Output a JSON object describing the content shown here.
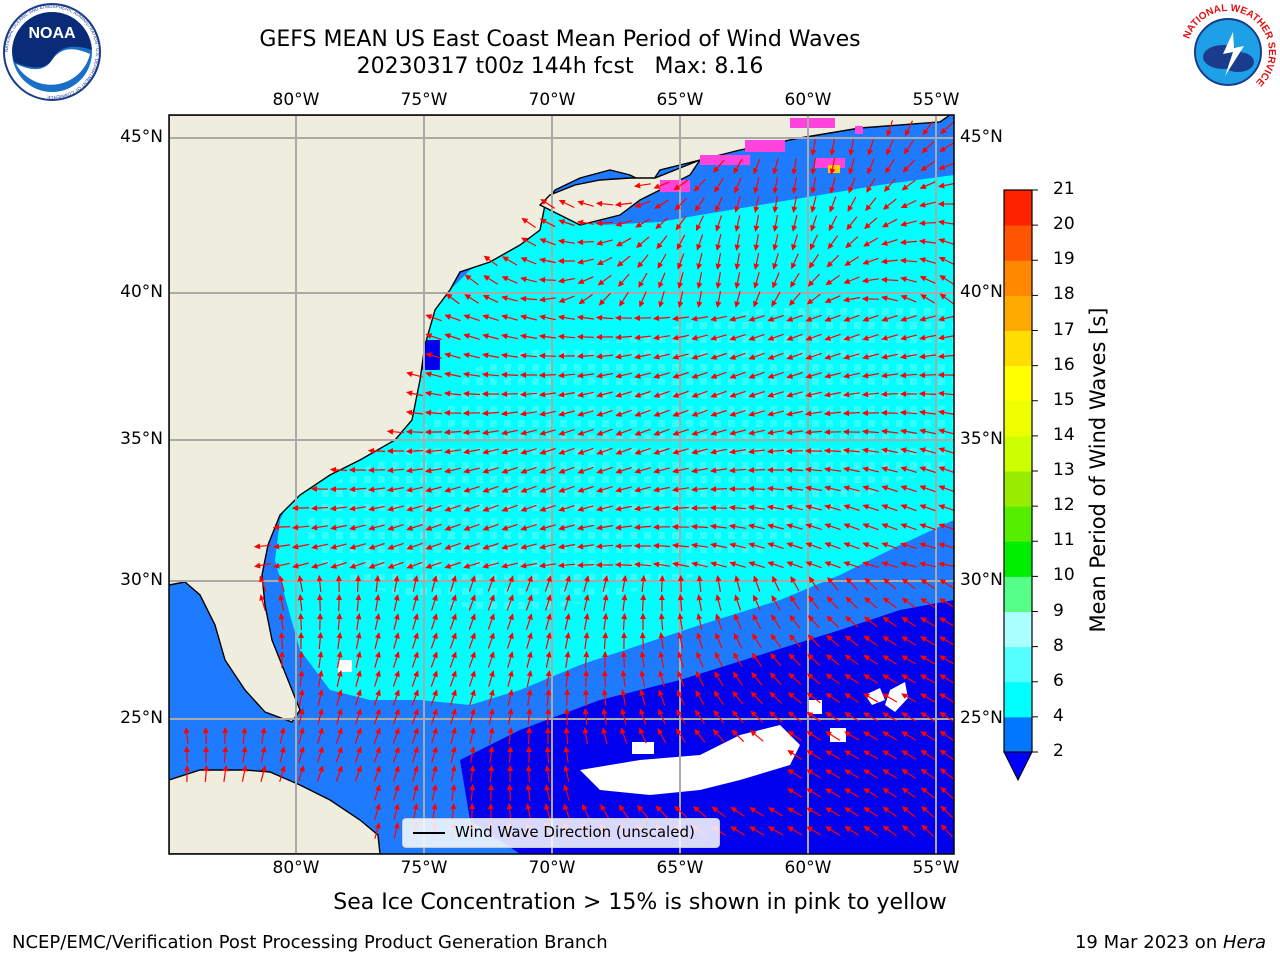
{
  "header": {
    "title_line1": "GEFS MEAN US East Coast Mean Period of Wind Waves",
    "title_line2": "20230317 t00z 144h fcst   Max: 8.16"
  },
  "logos": {
    "noaa_text": "NOAA",
    "noaa_ring_text": "NATIONAL OCEANIC AND ATMOSPHERIC ADMINISTRATION · U.S. DEPARTMENT OF COMMERCE",
    "nws_ring_text": "NATIONAL WEATHER SERVICE"
  },
  "map": {
    "lon_labels": [
      "80°W",
      "75°W",
      "70°W",
      "65°W",
      "60°W",
      "55°W"
    ],
    "lat_labels": [
      "45°N",
      "40°N",
      "35°N",
      "30°N",
      "25°N"
    ],
    "legend_label": "Wind Wave Direction (unscaled)",
    "colors": {
      "land": "#efedde",
      "band_2_4": "#1e7bff",
      "band_4_6": "#00ffff",
      "band_6_8": "#55ffff",
      "below_2": "#0000ee",
      "arrows": "#ff0000",
      "sea_ice": "#ff44dd"
    }
  },
  "colorbar": {
    "title": "Mean Period of Wind Waves [s]",
    "ticks": [
      "2",
      "4",
      "6",
      "8",
      "9",
      "10",
      "11",
      "12",
      "13",
      "14",
      "15",
      "16",
      "17",
      "18",
      "19",
      "20",
      "21"
    ],
    "colors": [
      "#0077ff",
      "#00ffff",
      "#55ffff",
      "#aaffff",
      "#55ff88",
      "#00ee00",
      "#55ee00",
      "#99ee00",
      "#ccff00",
      "#eeff00",
      "#ffff00",
      "#ffdd00",
      "#ffaa00",
      "#ff8800",
      "#ff5500",
      "#ff2200",
      "#ff0000"
    ],
    "extend_color": "#0000ff"
  },
  "caption": "Sea Ice Concentration > 15% is shown in pink to yellow",
  "footer": {
    "left": "NCEP/EMC/Verification Post Processing Product Generation Branch",
    "right_prefix": "19 Mar 2023 on ",
    "right_host": "Hera"
  }
}
